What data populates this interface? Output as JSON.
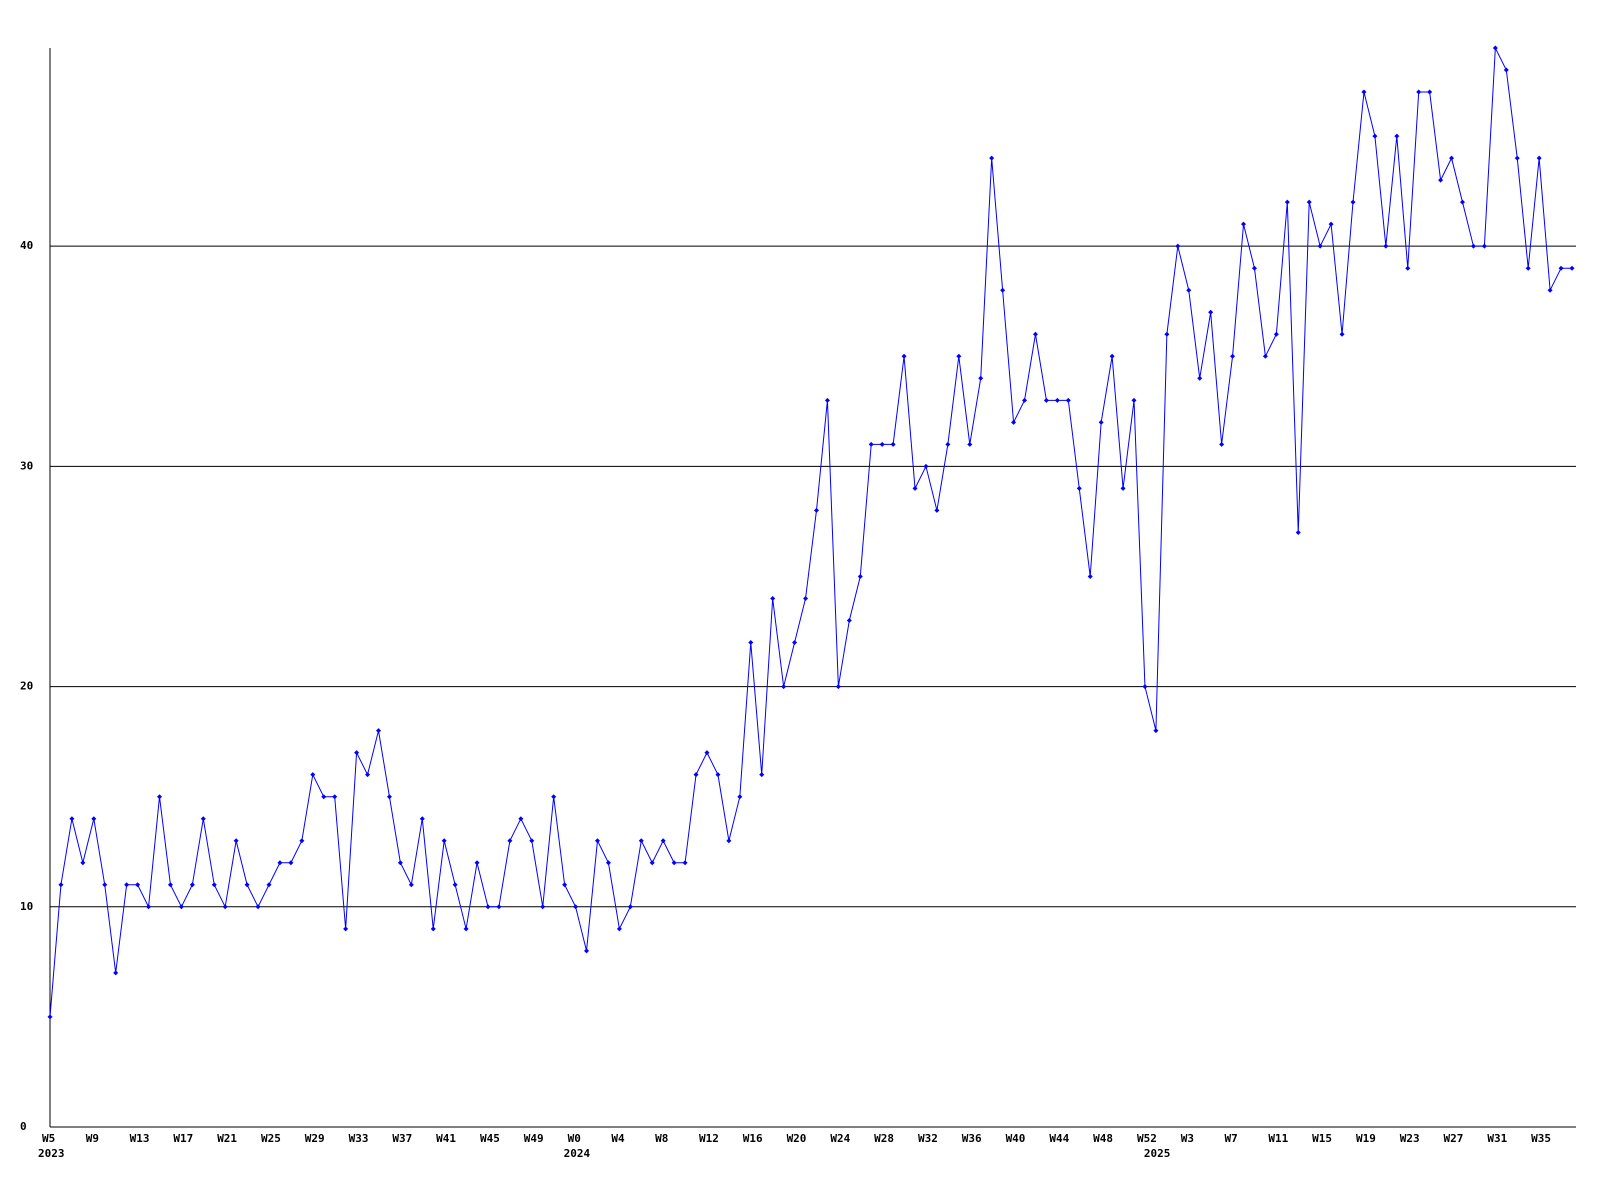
{
  "chart_data": {
    "type": "line",
    "color": "#0000ff",
    "grid": true,
    "ylim": [
      0,
      49
    ],
    "yticks": [
      0,
      10,
      20,
      30,
      40
    ],
    "categories": [
      "W5",
      null,
      null,
      null,
      "W9",
      null,
      null,
      null,
      "W13",
      null,
      null,
      null,
      "W17",
      null,
      null,
      null,
      "W21",
      null,
      null,
      null,
      "W25",
      null,
      null,
      null,
      "W29",
      null,
      null,
      null,
      "W33",
      null,
      null,
      null,
      "W37",
      null,
      null,
      null,
      "W41",
      null,
      null,
      null,
      "W45",
      null,
      null,
      null,
      "W49",
      null,
      null,
      null,
      "W0",
      null,
      null,
      null,
      "W4",
      null,
      null,
      null,
      "W8",
      null,
      null,
      null,
      "W12",
      null,
      null,
      null,
      "W16",
      null,
      null,
      null,
      "W20",
      null,
      null,
      null,
      "W24",
      null,
      null,
      null,
      "W28",
      null,
      null,
      null,
      "W32",
      null,
      null,
      null,
      "W36",
      null,
      null,
      null,
      "W40",
      null,
      null,
      null,
      "W44",
      null,
      null,
      null,
      "W48",
      null,
      null,
      null,
      "W52",
      null,
      null,
      null,
      "W3",
      null,
      null,
      null,
      "W7",
      null,
      null,
      null,
      "W11",
      null,
      null,
      null,
      "W15",
      null,
      null,
      null,
      "W19",
      null,
      null,
      null,
      "W23",
      null,
      null,
      null,
      "W27",
      null,
      null,
      null,
      "W31",
      null,
      null,
      null,
      "W35",
      null,
      null,
      null
    ],
    "category_years": [
      "2023",
      null,
      null,
      null,
      null,
      null,
      null,
      null,
      null,
      null,
      null,
      null,
      null,
      null,
      null,
      null,
      null,
      null,
      null,
      null,
      null,
      null,
      null,
      null,
      null,
      null,
      null,
      null,
      null,
      null,
      null,
      null,
      null,
      null,
      null,
      null,
      null,
      null,
      null,
      null,
      null,
      null,
      null,
      null,
      null,
      null,
      null,
      null,
      "2024",
      null,
      null,
      null,
      null,
      null,
      null,
      null,
      null,
      null,
      null,
      null,
      null,
      null,
      null,
      null,
      null,
      null,
      null,
      null,
      null,
      null,
      null,
      null,
      null,
      null,
      null,
      null,
      null,
      null,
      null,
      null,
      null,
      null,
      null,
      null,
      null,
      null,
      null,
      null,
      null,
      null,
      null,
      null,
      null,
      null,
      null,
      null,
      null,
      null,
      null,
      null,
      null,
      "2025",
      null,
      null,
      null,
      null,
      null,
      null,
      null,
      null,
      null,
      null,
      null,
      null,
      null,
      null,
      null,
      null,
      null,
      null,
      null,
      null,
      null,
      null,
      null,
      null,
      null,
      null,
      null,
      null,
      null,
      null,
      null,
      null,
      null,
      null,
      null,
      null,
      null,
      null
    ],
    "values": [
      5,
      11,
      14,
      12,
      14,
      11,
      7,
      11,
      11,
      10,
      15,
      11,
      10,
      11,
      14,
      11,
      10,
      13,
      11,
      10,
      11,
      12,
      12,
      13,
      16,
      15,
      15,
      9,
      17,
      16,
      18,
      15,
      12,
      11,
      14,
      9,
      13,
      11,
      9,
      12,
      10,
      10,
      13,
      14,
      13,
      10,
      15,
      11,
      10,
      8,
      13,
      12,
      9,
      10,
      13,
      12,
      13,
      12,
      12,
      16,
      17,
      16,
      13,
      15,
      22,
      16,
      24,
      20,
      22,
      24,
      28,
      33,
      20,
      23,
      25,
      31,
      31,
      31,
      35,
      29,
      30,
      28,
      31,
      35,
      31,
      34,
      44,
      38,
      32,
      33,
      36,
      33,
      33,
      33,
      29,
      25,
      32,
      35,
      29,
      33,
      20,
      18,
      36,
      40,
      38,
      34,
      37,
      31,
      35,
      41,
      39,
      35,
      36,
      42,
      27,
      42,
      40,
      41,
      36,
      42,
      47,
      45,
      40,
      45,
      39,
      47,
      47,
      43,
      44,
      42,
      40,
      40,
      49,
      48,
      44,
      39,
      44,
      38,
      39,
      39
    ]
  }
}
